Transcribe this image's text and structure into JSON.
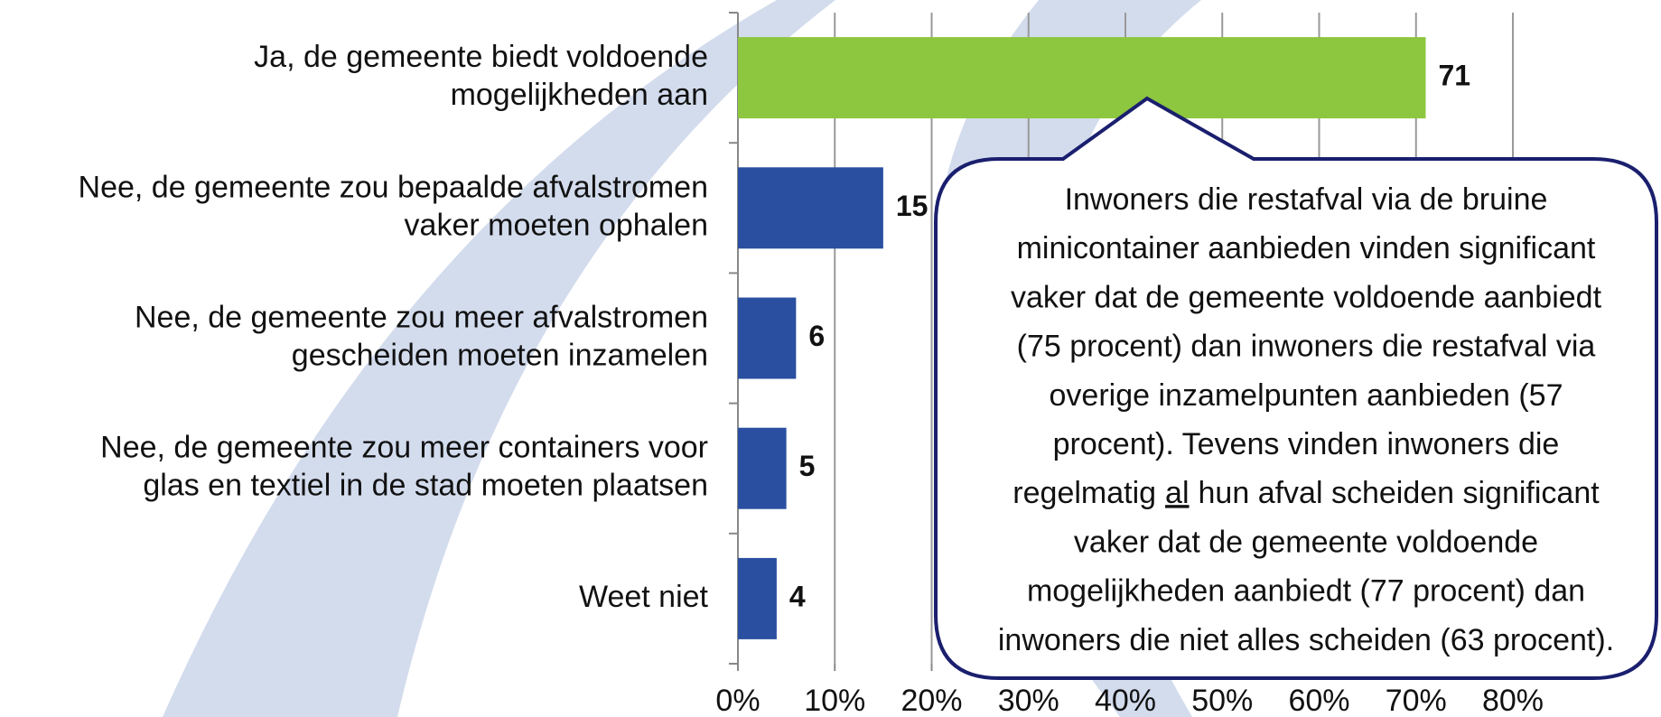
{
  "chart_data": {
    "type": "bar",
    "orientation": "horizontal",
    "categories": [
      [
        "Ja, de gemeente biedt voldoende",
        "mogelijkheden aan"
      ],
      [
        "Nee, de gemeente zou bepaalde afvalstromen",
        "vaker moeten ophalen"
      ],
      [
        "Nee, de gemeente zou meer afvalstromen",
        "gescheiden moeten inzamelen"
      ],
      [
        "Nee, de gemeente zou meer containers voor",
        "glas en textiel in de stad moeten plaatsen"
      ],
      [
        "Weet niet"
      ]
    ],
    "values": [
      71,
      15,
      6,
      5,
      4
    ],
    "colors": [
      "#8dc63f",
      "#2a4fa0",
      "#2a4fa0",
      "#2a4fa0",
      "#2a4fa0"
    ],
    "xlim": [
      0,
      80
    ],
    "xticks": [
      {
        "value": 0,
        "label": "0%"
      },
      {
        "value": 10,
        "label": "10%"
      },
      {
        "value": 20,
        "label": "20%"
      },
      {
        "value": 30,
        "label": "30%"
      },
      {
        "value": 40,
        "label": "40%"
      },
      {
        "value": 50,
        "label": "50%"
      },
      {
        "value": 60,
        "label": "60%"
      },
      {
        "value": 70,
        "label": "70%"
      },
      {
        "value": 80,
        "label": "80%"
      }
    ],
    "grid": true,
    "annotation": [
      "Inwoners die restafval via de bruine",
      "minicontainer aanbieden vinden significant",
      "vaker dat de gemeente voldoende aanbiedt",
      "(75 procent) dan inwoners die restafval via",
      "overige inzamelpunten aanbieden (57",
      "procent). Tevens vinden inwoners die",
      [
        "regelmatig",
        "al",
        "hun afval scheiden significant"
      ],
      "vaker dat de gemeente voldoende",
      "mogelijkheden aanbiedt (77 procent) dan",
      "inwoners die niet alles scheiden (63 procent)."
    ]
  }
}
